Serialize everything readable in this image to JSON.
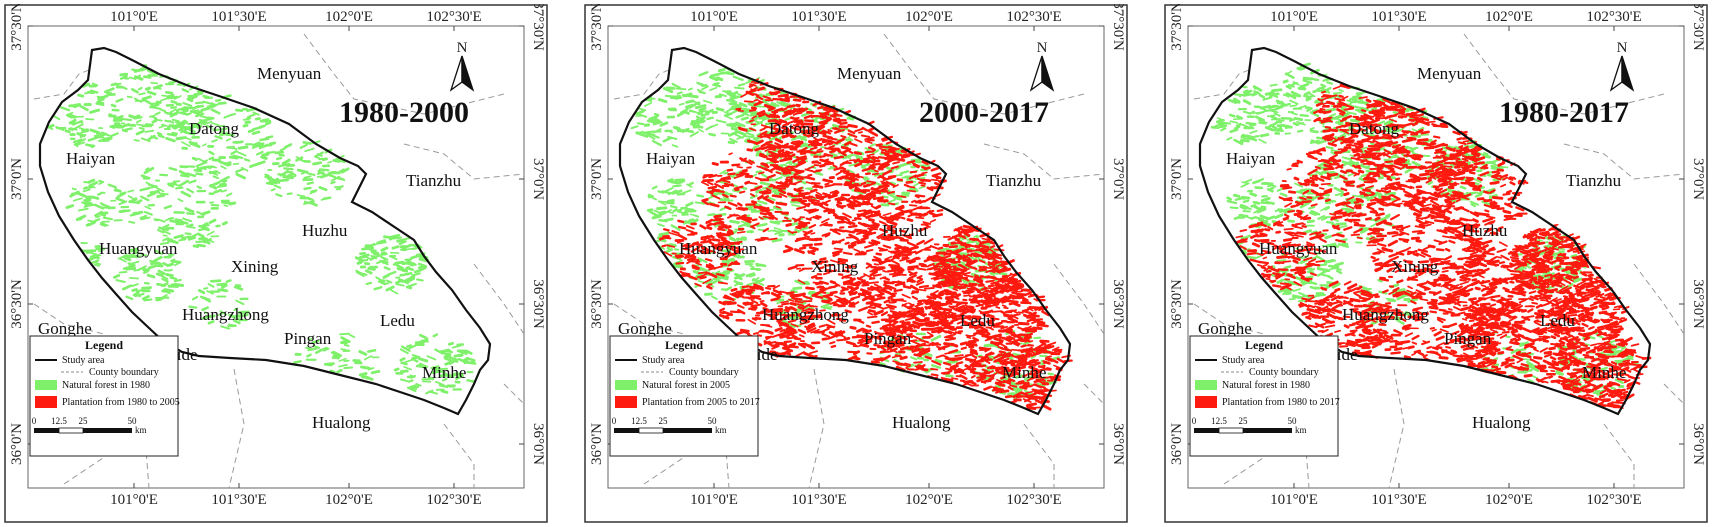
{
  "panels": [
    {
      "period": "1980-2000",
      "legend": {
        "title": "Legend",
        "items": [
          "Study area",
          "County boundary",
          "Natural forest in 1980",
          "Plantation from 1980 to 2005"
        ]
      },
      "show_plantation": false
    },
    {
      "period": "2000-2017",
      "legend": {
        "title": "Legend",
        "items": [
          "Study area",
          "County boundary",
          "Natural forest in 2005",
          "Plantation from 2005 to 2017"
        ]
      },
      "show_plantation": true
    },
    {
      "period": "1980-2017",
      "legend": {
        "title": "Legend",
        "items": [
          "Study area",
          "County boundary",
          "Natural forest in 1980",
          "Plantation from 1980 to 2017"
        ]
      },
      "show_plantation": true
    }
  ],
  "lon_labels": [
    "101°0'E",
    "101°30'E",
    "102°0'E",
    "102°30'E"
  ],
  "lat_labels": [
    "37°30'N",
    "37°0'N",
    "36°30'N",
    "36°0'N"
  ],
  "places": [
    "Menyuan",
    "Datong",
    "Haiyan",
    "Tianzhu",
    "Huzhu",
    "Huangyuan",
    "Xining",
    "Huangzhong",
    "Gonghe",
    "Pingan",
    "Ledu",
    "Guide",
    "Minhe",
    "Hualong"
  ],
  "north_label": "N",
  "scalebar": {
    "ticks": [
      "0",
      "12.5",
      "25",
      "50"
    ],
    "unit": "km"
  },
  "colors": {
    "natural_forest": "#7ef06a",
    "plantation": "#ff1a10",
    "boundary": "#111111",
    "county": "#9a9a9a",
    "frame": "#333333"
  }
}
